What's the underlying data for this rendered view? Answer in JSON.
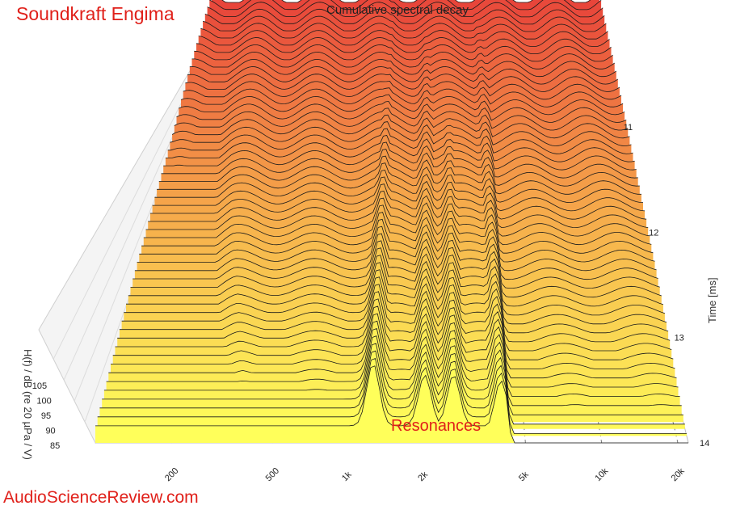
{
  "header": {
    "brand": "Soundkraft Engima",
    "watermark": "AudioScienceReview.com"
  },
  "chart_data": {
    "type": "waterfall",
    "title": "Cumulative spectral decay",
    "xlabel": "",
    "ylabel": "H(f) / dB (re 20 µPa / V)",
    "zlabel": "Time [ms]",
    "x_scale": "log",
    "x_ticks": [
      "200",
      "500",
      "1k",
      "2k",
      "5k",
      "10k",
      "20k"
    ],
    "x_tick_values": [
      200,
      500,
      1000,
      2000,
      5000,
      10000,
      20000
    ],
    "y_ticks": [
      "85",
      "90",
      "95",
      "100",
      "105"
    ],
    "y_tick_values": [
      85,
      90,
      95,
      100,
      105
    ],
    "z_ticks": [
      "11",
      "12",
      "13",
      "14"
    ],
    "z_tick_values": [
      11,
      12,
      13,
      14
    ],
    "ylim": [
      85,
      112
    ],
    "zlim": [
      10.5,
      14
    ],
    "grid": true,
    "annotations": [
      {
        "text": "Resonances"
      }
    ],
    "colors": {
      "back": "#e8453a",
      "mid": "#f5a64a",
      "front": "#ffff5a",
      "line": "#1a1a1a"
    },
    "resonance_peaks_hz": [
      1250,
      2000,
      2600,
      4000
    ],
    "slice_count": 54
  }
}
